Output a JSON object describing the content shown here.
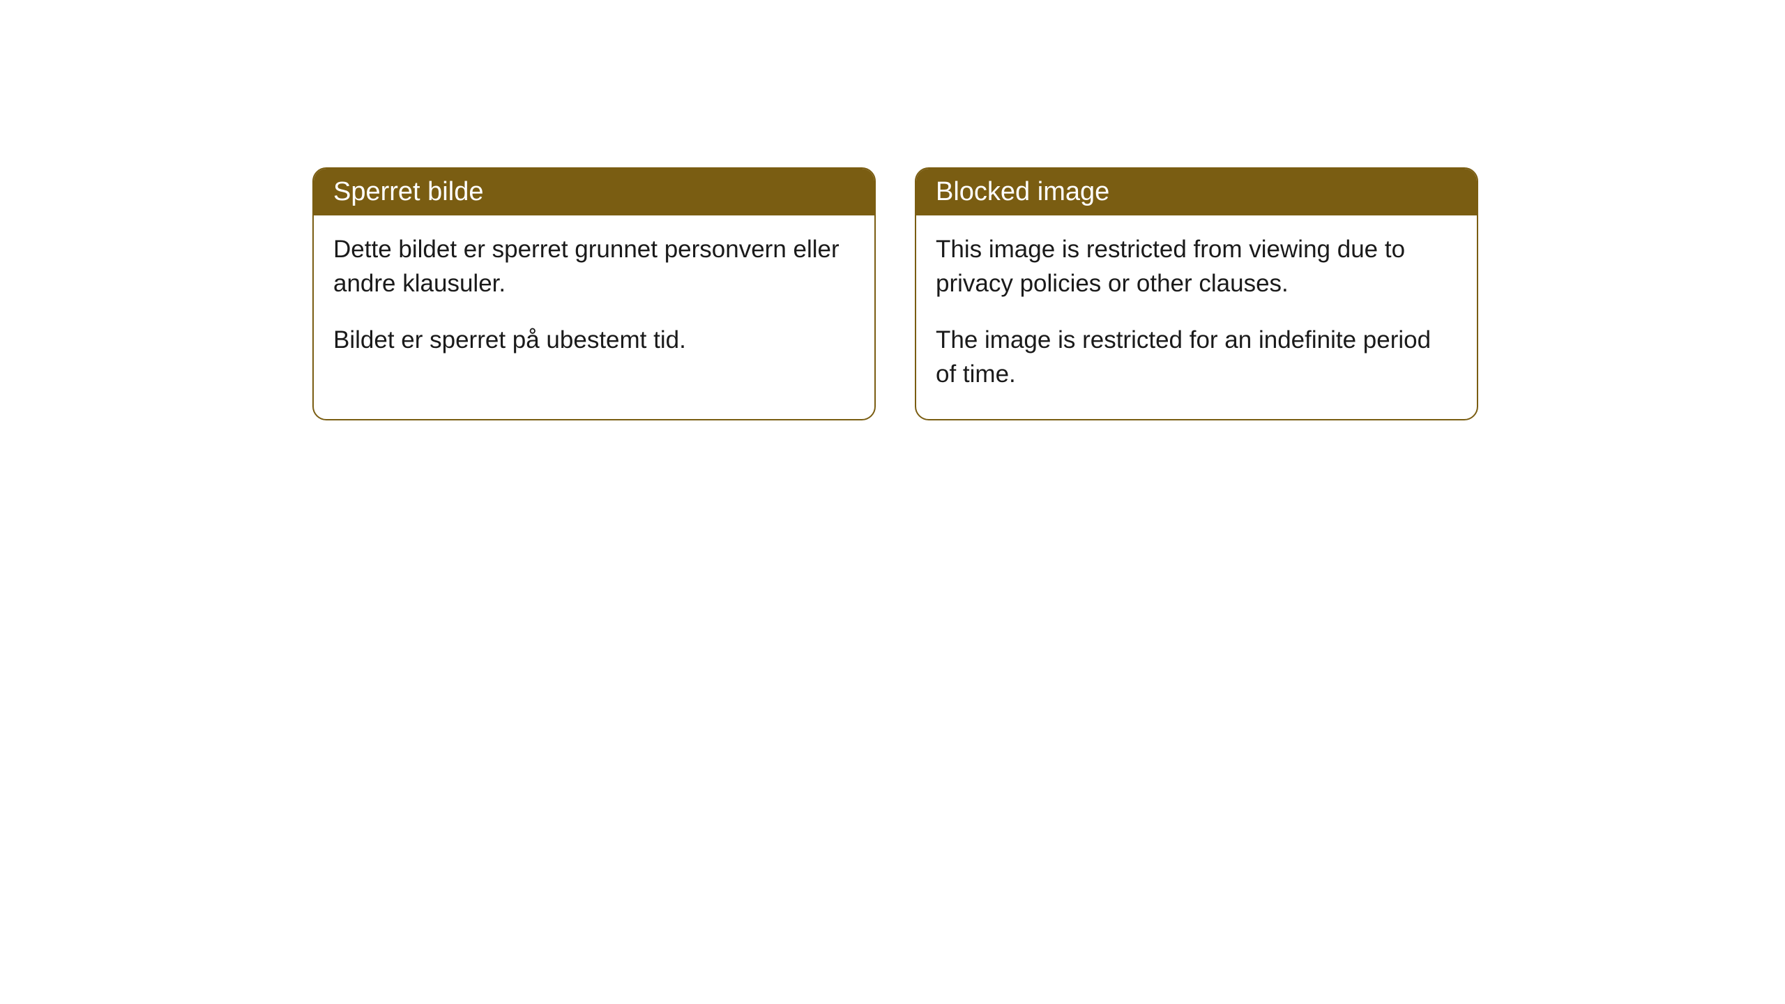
{
  "cards": {
    "norwegian": {
      "title": "Sperret bilde",
      "paragraph1": "Dette bildet er sperret grunnet personvern eller andre klausuler.",
      "paragraph2": "Bildet er sperret på ubestemt tid."
    },
    "english": {
      "title": "Blocked image",
      "paragraph1": "This image is restricted from viewing due to privacy policies or other clauses.",
      "paragraph2": "The image is restricted for an indefinite period of time."
    }
  },
  "styling": {
    "header_background": "#7a5d12",
    "header_text_color": "#ffffff",
    "border_color": "#7a5d12",
    "body_background": "#ffffff",
    "body_text_color": "#1a1a1a",
    "border_radius": 20,
    "header_fontsize": 38,
    "body_fontsize": 35
  }
}
